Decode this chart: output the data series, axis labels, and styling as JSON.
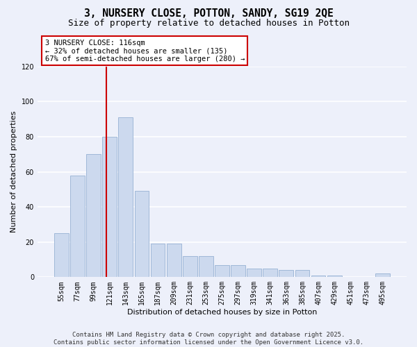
{
  "title": "3, NURSERY CLOSE, POTTON, SANDY, SG19 2QE",
  "subtitle": "Size of property relative to detached houses in Potton",
  "xlabel": "Distribution of detached houses by size in Potton",
  "ylabel": "Number of detached properties",
  "categories": [
    "55sqm",
    "77sqm",
    "99sqm",
    "121sqm",
    "143sqm",
    "165sqm",
    "187sqm",
    "209sqm",
    "231sqm",
    "253sqm",
    "275sqm",
    "297sqm",
    "319sqm",
    "341sqm",
    "363sqm",
    "385sqm",
    "407sqm",
    "429sqm",
    "451sqm",
    "473sqm",
    "495sqm"
  ],
  "values": [
    25,
    58,
    70,
    80,
    91,
    49,
    19,
    19,
    12,
    12,
    7,
    7,
    5,
    5,
    4,
    4,
    1,
    1,
    0,
    0,
    2
  ],
  "bar_color": "#ccd9ee",
  "bar_edge_color": "#a0b8d8",
  "property_label": "3 NURSERY CLOSE: 116sqm",
  "annotation_line1": "← 32% of detached houses are smaller (135)",
  "annotation_line2": "67% of semi-detached houses are larger (280) →",
  "vline_color": "#cc0000",
  "ylim": [
    0,
    120
  ],
  "yticks": [
    0,
    20,
    40,
    60,
    80,
    100,
    120
  ],
  "background_color": "#edf0fa",
  "grid_color": "#ffffff",
  "footnote": "Contains HM Land Registry data © Crown copyright and database right 2025.\nContains public sector information licensed under the Open Government Licence v3.0.",
  "title_fontsize": 10.5,
  "subtitle_fontsize": 9,
  "axis_label_fontsize": 8,
  "tick_fontsize": 7,
  "annotation_fontsize": 7.5,
  "footnote_fontsize": 6.5
}
